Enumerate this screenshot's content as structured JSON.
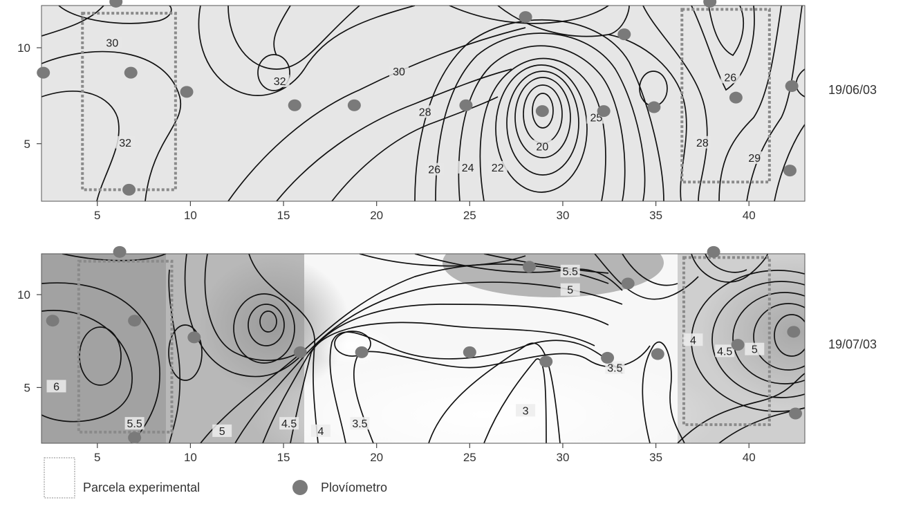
{
  "colors": {
    "panel_top_bg": "#e6e6e6",
    "panel_bottom_bg_light": "#f7f7f7",
    "panel_bottom_bg_dark": "#a9a9a9",
    "contour": "#111111",
    "rain_gauge": "#7a7a7a",
    "plot_outline": "#8a8a8a",
    "axis": "#444444"
  },
  "chart_data": [
    {
      "type": "contour",
      "date_label": "19/06/03",
      "xlim": [
        2,
        43
      ],
      "ylim": [
        2,
        12.2
      ],
      "x_ticks": [
        5,
        10,
        15,
        20,
        25,
        30,
        35,
        40
      ],
      "y_ticks": [
        5,
        10
      ],
      "contour_labels": [
        {
          "text": "30",
          "x": 5.8,
          "y": 10.2
        },
        {
          "text": "32",
          "x": 14.8,
          "y": 8.2
        },
        {
          "text": "30",
          "x": 21.2,
          "y": 8.7
        },
        {
          "text": "28",
          "x": 22.6,
          "y": 6.6
        },
        {
          "text": "26",
          "x": 23.1,
          "y": 3.6
        },
        {
          "text": "24",
          "x": 24.9,
          "y": 3.7
        },
        {
          "text": "22",
          "x": 26.5,
          "y": 3.7
        },
        {
          "text": "20",
          "x": 28.9,
          "y": 4.8
        },
        {
          "text": "25",
          "x": 31.8,
          "y": 6.3
        },
        {
          "text": "32",
          "x": 6.5,
          "y": 5.0
        },
        {
          "text": "28",
          "x": 37.5,
          "y": 5.0
        },
        {
          "text": "26",
          "x": 39.0,
          "y": 8.4
        },
        {
          "text": "29",
          "x": 40.3,
          "y": 4.2
        }
      ],
      "rain_gauges": [
        {
          "x": 6.0,
          "y": 12.4
        },
        {
          "x": 2.1,
          "y": 8.7
        },
        {
          "x": 6.8,
          "y": 8.7
        },
        {
          "x": 9.8,
          "y": 7.7
        },
        {
          "x": 6.7,
          "y": 2.6
        },
        {
          "x": 15.6,
          "y": 7.0
        },
        {
          "x": 18.8,
          "y": 7.0
        },
        {
          "x": 24.8,
          "y": 7.0
        },
        {
          "x": 28.0,
          "y": 11.6
        },
        {
          "x": 28.9,
          "y": 6.7
        },
        {
          "x": 32.2,
          "y": 6.7
        },
        {
          "x": 33.3,
          "y": 10.7
        },
        {
          "x": 34.9,
          "y": 6.9
        },
        {
          "x": 37.9,
          "y": 12.4
        },
        {
          "x": 39.3,
          "y": 7.4
        },
        {
          "x": 42.3,
          "y": 8.0
        },
        {
          "x": 42.2,
          "y": 3.6
        }
      ],
      "experimental_plots": [
        {
          "x0": 4.2,
          "x1": 9.2,
          "y0": 2.6,
          "y1": 11.8
        },
        {
          "x0": 36.4,
          "x1": 41.1,
          "y0": 3.0,
          "y1": 12.0
        }
      ]
    },
    {
      "type": "contour",
      "date_label": "19/07/03",
      "xlim": [
        2,
        43
      ],
      "ylim": [
        2,
        12.2
      ],
      "x_ticks": [
        5,
        10,
        15,
        20,
        25,
        30,
        35,
        40
      ],
      "y_ticks": [
        5,
        10
      ],
      "contour_labels": [
        {
          "text": "6",
          "x": 2.8,
          "y": 5.0
        },
        {
          "text": "5.5",
          "x": 7.0,
          "y": 3.0
        },
        {
          "text": "5",
          "x": 11.7,
          "y": 2.6
        },
        {
          "text": "4.5",
          "x": 15.3,
          "y": 3.0
        },
        {
          "text": "4",
          "x": 17.0,
          "y": 2.6
        },
        {
          "text": "3.5",
          "x": 19.1,
          "y": 3.0
        },
        {
          "text": "3",
          "x": 28.0,
          "y": 3.7
        },
        {
          "text": "3.5",
          "x": 32.8,
          "y": 6.0
        },
        {
          "text": "5.5",
          "x": 30.4,
          "y": 11.2
        },
        {
          "text": "5",
          "x": 30.4,
          "y": 10.2
        },
        {
          "text": "4",
          "x": 37.0,
          "y": 7.5
        },
        {
          "text": "4.5",
          "x": 38.7,
          "y": 6.9
        },
        {
          "text": "5",
          "x": 40.3,
          "y": 7.0
        }
      ],
      "rain_gauges": [
        {
          "x": 6.2,
          "y": 12.3
        },
        {
          "x": 2.6,
          "y": 8.6
        },
        {
          "x": 7.0,
          "y": 8.6
        },
        {
          "x": 10.2,
          "y": 7.7
        },
        {
          "x": 7.0,
          "y": 2.3
        },
        {
          "x": 15.9,
          "y": 6.9
        },
        {
          "x": 19.2,
          "y": 6.9
        },
        {
          "x": 25.0,
          "y": 6.9
        },
        {
          "x": 28.2,
          "y": 11.5
        },
        {
          "x": 29.1,
          "y": 6.4
        },
        {
          "x": 32.4,
          "y": 6.6
        },
        {
          "x": 33.5,
          "y": 10.6
        },
        {
          "x": 35.1,
          "y": 6.8
        },
        {
          "x": 38.1,
          "y": 12.3
        },
        {
          "x": 39.4,
          "y": 7.3
        },
        {
          "x": 42.4,
          "y": 8.0
        },
        {
          "x": 42.5,
          "y": 3.6
        }
      ],
      "experimental_plots": [
        {
          "x0": 4.0,
          "x1": 9.0,
          "y0": 2.6,
          "y1": 11.8
        },
        {
          "x0": 36.5,
          "x1": 41.1,
          "y0": 3.0,
          "y1": 12.0
        }
      ]
    }
  ],
  "legend": {
    "plot_label": "Parcela experimental",
    "gauge_label": "Plovíometro"
  }
}
